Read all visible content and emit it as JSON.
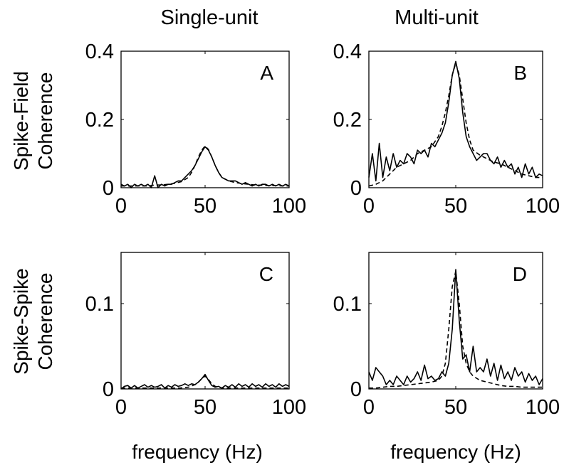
{
  "column_titles": [
    "Single-unit",
    "Multi-unit"
  ],
  "row_titles": [
    [
      "Spike-Field",
      "Coherence"
    ],
    [
      "Spike-Spike",
      "Coherence"
    ]
  ],
  "xlabel": "frequency (Hz)",
  "chart_data": [
    {
      "type": "line",
      "panel_label": "A",
      "xlim": [
        0,
        100
      ],
      "ylim": [
        0,
        0.4
      ],
      "xticks": [
        0,
        50,
        100
      ],
      "yticks": [
        0,
        0.2,
        0.4
      ],
      "ytick_labels": [
        "0",
        "0.2",
        "0.4"
      ],
      "series": [
        {
          "style": "solid",
          "x": [
            0,
            2,
            4,
            6,
            8,
            10,
            12,
            14,
            16,
            18,
            20,
            22,
            24,
            26,
            28,
            30,
            32,
            34,
            36,
            38,
            40,
            42,
            44,
            46,
            48,
            50,
            52,
            54,
            56,
            58,
            60,
            62,
            64,
            66,
            68,
            70,
            72,
            74,
            76,
            78,
            80,
            82,
            84,
            86,
            88,
            90,
            92,
            94,
            96,
            98,
            100
          ],
          "y": [
            0.01,
            0.005,
            0.01,
            0.0,
            0.01,
            0.005,
            0.01,
            0.005,
            0.01,
            0.0,
            0.035,
            0.0,
            0.01,
            0.005,
            0.01,
            0.01,
            0.015,
            0.02,
            0.02,
            0.03,
            0.04,
            0.05,
            0.065,
            0.085,
            0.105,
            0.12,
            0.11,
            0.09,
            0.065,
            0.045,
            0.03,
            0.025,
            0.02,
            0.02,
            0.02,
            0.015,
            0.01,
            0.015,
            0.01,
            0.005,
            0.01,
            0.005,
            0.01,
            0.01,
            0.005,
            0.01,
            0.005,
            0.01,
            0.005,
            0.01,
            0.005
          ]
        },
        {
          "style": "dashed",
          "x": [
            0,
            4,
            8,
            12,
            16,
            20,
            24,
            28,
            32,
            36,
            40,
            42,
            44,
            46,
            48,
            50,
            52,
            54,
            56,
            58,
            60,
            64,
            68,
            72,
            76,
            80,
            84,
            88,
            92,
            96,
            100
          ],
          "y": [
            0.005,
            0.005,
            0.005,
            0.005,
            0.005,
            0.008,
            0.008,
            0.01,
            0.013,
            0.018,
            0.03,
            0.045,
            0.065,
            0.09,
            0.11,
            0.122,
            0.112,
            0.09,
            0.065,
            0.045,
            0.03,
            0.02,
            0.015,
            0.012,
            0.01,
            0.008,
            0.007,
            0.006,
            0.006,
            0.005,
            0.005
          ]
        }
      ]
    },
    {
      "type": "line",
      "panel_label": "B",
      "xlim": [
        0,
        100
      ],
      "ylim": [
        0,
        0.4
      ],
      "xticks": [
        0,
        50,
        100
      ],
      "yticks": [
        0,
        0.2,
        0.4
      ],
      "ytick_labels": [
        "0",
        "0.2",
        "0.4"
      ],
      "series": [
        {
          "style": "solid",
          "x": [
            0,
            2,
            4,
            6,
            8,
            10,
            12,
            14,
            16,
            18,
            20,
            22,
            24,
            26,
            28,
            30,
            32,
            34,
            36,
            38,
            40,
            42,
            44,
            46,
            48,
            50,
            52,
            54,
            56,
            58,
            60,
            62,
            64,
            66,
            68,
            70,
            72,
            74,
            76,
            78,
            80,
            82,
            84,
            86,
            88,
            90,
            92,
            94,
            96,
            98,
            100
          ],
          "y": [
            0.03,
            0.1,
            0.02,
            0.13,
            0.03,
            0.09,
            0.05,
            0.1,
            0.06,
            0.08,
            0.07,
            0.1,
            0.09,
            0.07,
            0.11,
            0.1,
            0.11,
            0.09,
            0.13,
            0.12,
            0.14,
            0.16,
            0.19,
            0.25,
            0.33,
            0.37,
            0.32,
            0.22,
            0.15,
            0.12,
            0.1,
            0.08,
            0.09,
            0.1,
            0.1,
            0.08,
            0.07,
            0.09,
            0.06,
            0.08,
            0.06,
            0.07,
            0.04,
            0.06,
            0.03,
            0.07,
            0.04,
            0.06,
            0.03,
            0.04,
            0.035
          ]
        },
        {
          "style": "dashed",
          "x": [
            0,
            4,
            8,
            12,
            16,
            20,
            24,
            28,
            32,
            36,
            40,
            42,
            44,
            46,
            48,
            50,
            52,
            54,
            56,
            58,
            60,
            64,
            68,
            72,
            76,
            80,
            84,
            88,
            92,
            96,
            100
          ],
          "y": [
            0.005,
            0.01,
            0.02,
            0.04,
            0.06,
            0.07,
            0.08,
            0.1,
            0.11,
            0.12,
            0.15,
            0.18,
            0.22,
            0.27,
            0.33,
            0.365,
            0.33,
            0.26,
            0.19,
            0.14,
            0.11,
            0.095,
            0.085,
            0.075,
            0.07,
            0.06,
            0.05,
            0.04,
            0.035,
            0.03,
            0.03
          ]
        }
      ]
    },
    {
      "type": "line",
      "panel_label": "C",
      "xlim": [
        0,
        100
      ],
      "ylim": [
        0,
        0.16
      ],
      "xticks": [
        0,
        50,
        100
      ],
      "yticks": [
        0,
        0.1
      ],
      "ytick_labels": [
        "0",
        "0.1"
      ],
      "series": [
        {
          "style": "solid",
          "x": [
            0,
            2,
            4,
            6,
            8,
            10,
            12,
            14,
            16,
            18,
            20,
            22,
            24,
            26,
            28,
            30,
            32,
            34,
            36,
            38,
            40,
            42,
            44,
            46,
            48,
            50,
            52,
            54,
            56,
            58,
            60,
            62,
            64,
            66,
            68,
            70,
            72,
            74,
            76,
            78,
            80,
            82,
            84,
            86,
            88,
            90,
            92,
            94,
            96,
            98,
            100
          ],
          "y": [
            0.0,
            0.003,
            0.004,
            0.001,
            0.004,
            0.001,
            0.003,
            0.005,
            0.002,
            0.004,
            0.002,
            0.003,
            0.005,
            0.001,
            0.004,
            0.002,
            0.005,
            0.003,
            0.004,
            0.006,
            0.004,
            0.006,
            0.005,
            0.008,
            0.012,
            0.017,
            0.01,
            0.004,
            0.002,
            0.003,
            0.001,
            0.004,
            0.002,
            0.005,
            0.002,
            0.006,
            0.003,
            0.005,
            0.002,
            0.006,
            0.003,
            0.005,
            0.002,
            0.006,
            0.003,
            0.005,
            0.002,
            0.006,
            0.003,
            0.005,
            0.003
          ]
        },
        {
          "style": "dashed",
          "x": [
            0,
            5,
            10,
            15,
            20,
            25,
            30,
            35,
            40,
            44,
            46,
            48,
            50,
            52,
            54,
            56,
            60,
            65,
            70,
            75,
            80,
            85,
            90,
            95,
            100
          ],
          "y": [
            0.001,
            0.001,
            0.001,
            0.001,
            0.001,
            0.001,
            0.001,
            0.001,
            0.002,
            0.005,
            0.008,
            0.012,
            0.015,
            0.011,
            0.006,
            0.003,
            0.001,
            0.001,
            0.001,
            0.001,
            0.001,
            0.001,
            0.001,
            0.001,
            0.001
          ]
        }
      ]
    },
    {
      "type": "line",
      "panel_label": "D",
      "xlim": [
        0,
        100
      ],
      "ylim": [
        0,
        0.16
      ],
      "xticks": [
        0,
        50,
        100
      ],
      "yticks": [
        0,
        0.1
      ],
      "ytick_labels": [
        "0",
        "0.1"
      ],
      "series": [
        {
          "style": "solid",
          "x": [
            0,
            2,
            4,
            6,
            8,
            10,
            12,
            14,
            16,
            18,
            20,
            22,
            24,
            26,
            28,
            30,
            32,
            34,
            36,
            38,
            40,
            42,
            44,
            46,
            48,
            50,
            52,
            54,
            56,
            58,
            60,
            62,
            64,
            66,
            68,
            70,
            72,
            74,
            76,
            78,
            80,
            82,
            84,
            86,
            88,
            90,
            92,
            94,
            96,
            98,
            100
          ],
          "y": [
            0.02,
            0.01,
            0.025,
            0.02,
            0.015,
            0.005,
            0.01,
            0.005,
            0.015,
            0.01,
            0.005,
            0.015,
            0.008,
            0.012,
            0.02,
            0.01,
            0.028,
            0.012,
            0.015,
            0.01,
            0.012,
            0.02,
            0.015,
            0.03,
            0.07,
            0.14,
            0.08,
            0.035,
            0.04,
            0.02,
            0.05,
            0.02,
            0.025,
            0.02,
            0.035,
            0.015,
            0.03,
            0.01,
            0.028,
            0.012,
            0.02,
            0.01,
            0.025,
            0.015,
            0.02,
            0.008,
            0.018,
            0.01,
            0.015,
            0.005,
            0.012
          ]
        },
        {
          "style": "dashed",
          "x": [
            0,
            4,
            8,
            12,
            16,
            20,
            24,
            28,
            32,
            36,
            40,
            42,
            44,
            46,
            48,
            50,
            52,
            54,
            56,
            58,
            60,
            64,
            68,
            72,
            76,
            80,
            84,
            88,
            92,
            96,
            100
          ],
          "y": [
            0.001,
            0.001,
            0.002,
            0.003,
            0.003,
            0.004,
            0.005,
            0.006,
            0.007,
            0.008,
            0.01,
            0.015,
            0.03,
            0.07,
            0.12,
            0.138,
            0.1,
            0.05,
            0.03,
            0.02,
            0.015,
            0.01,
            0.008,
            0.006,
            0.004,
            0.003,
            0.003,
            0.002,
            0.002,
            0.002,
            0.002
          ]
        }
      ]
    }
  ]
}
